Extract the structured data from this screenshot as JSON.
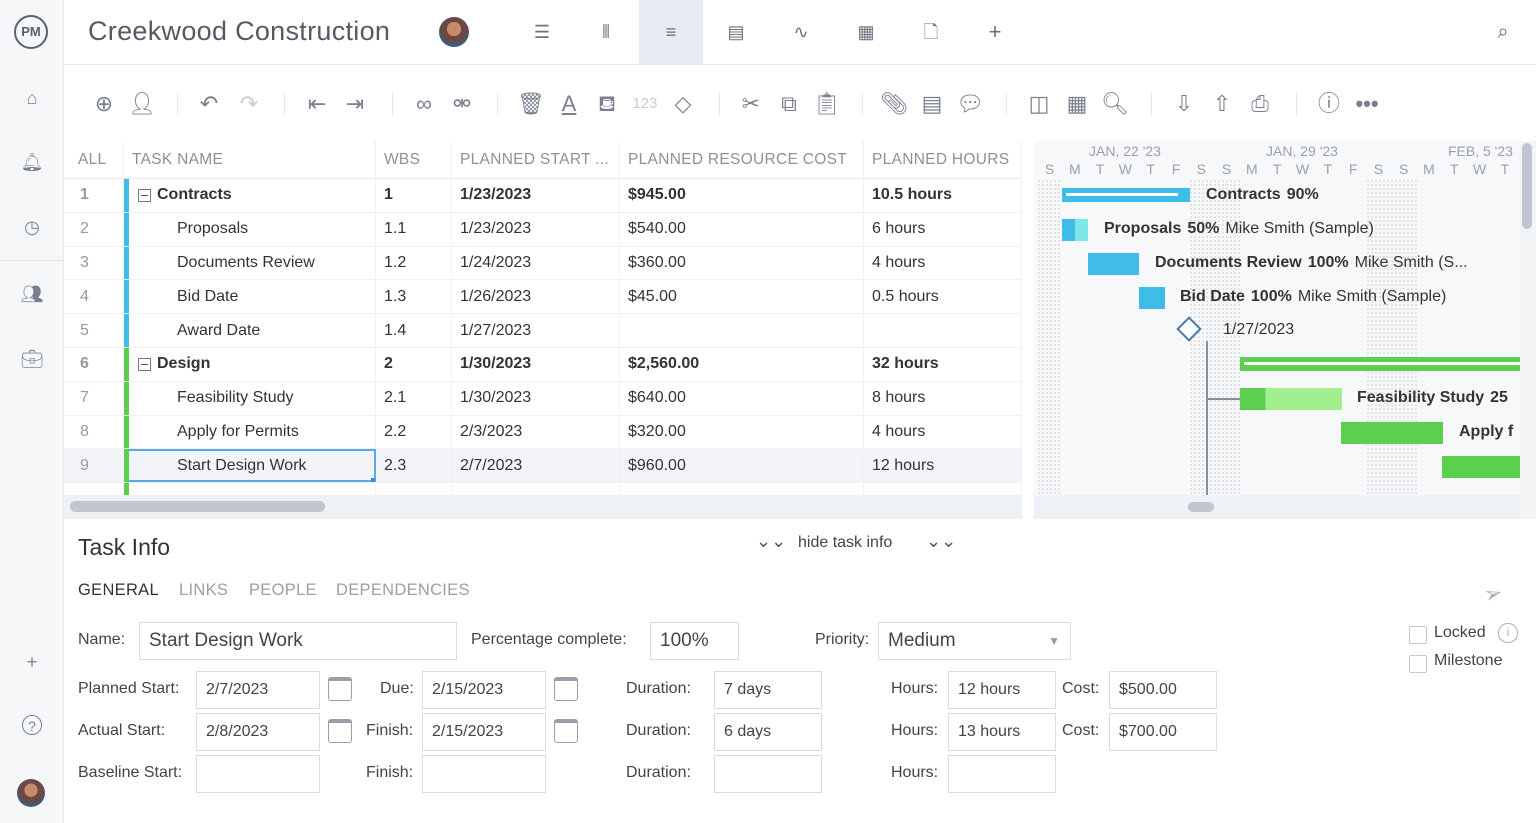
{
  "app": {
    "logo": "PM",
    "title": "Creekwood Construction"
  },
  "sidebar": {
    "items": [
      {
        "icon": "home-icon"
      },
      {
        "icon": "bell-icon"
      },
      {
        "icon": "clock-icon"
      },
      {
        "icon": "people-icon"
      },
      {
        "icon": "briefcase-icon"
      },
      {
        "icon": "plus-icon"
      },
      {
        "icon": "help-icon"
      }
    ]
  },
  "views": [
    {
      "icon": "list-view-icon"
    },
    {
      "icon": "board-view-icon"
    },
    {
      "icon": "gantt-view-icon",
      "active": true
    },
    {
      "icon": "sheet-view-icon"
    },
    {
      "icon": "dashboard-view-icon"
    },
    {
      "icon": "calendar-view-icon"
    },
    {
      "icon": "files-view-icon"
    },
    {
      "icon": "add-view-icon"
    }
  ],
  "toolbar": {
    "number_format": "123"
  },
  "table": {
    "headers": [
      "ALL",
      "TASK NAME",
      "WBS",
      "PLANNED START ...",
      "PLANNED RESOURCE COST",
      "PLANNED HOURS"
    ],
    "rows": [
      {
        "n": "1",
        "name": "Contracts",
        "wbs": "1",
        "start": "1/23/2023",
        "cost": "$945.00",
        "hours": "10.5 hours",
        "summary": true,
        "color": "#3fbde8"
      },
      {
        "n": "2",
        "name": "Proposals",
        "wbs": "1.1",
        "start": "1/23/2023",
        "cost": "$540.00",
        "hours": "6 hours",
        "color": "#3fbde8"
      },
      {
        "n": "3",
        "name": "Documents Review",
        "wbs": "1.2",
        "start": "1/24/2023",
        "cost": "$360.00",
        "hours": "4 hours",
        "color": "#3fbde8"
      },
      {
        "n": "4",
        "name": "Bid Date",
        "wbs": "1.3",
        "start": "1/26/2023",
        "cost": "$45.00",
        "hours": "0.5 hours",
        "color": "#3fbde8"
      },
      {
        "n": "5",
        "name": "Award Date",
        "wbs": "1.4",
        "start": "1/27/2023",
        "cost": "",
        "hours": "",
        "color": "#3fbde8"
      },
      {
        "n": "6",
        "name": "Design",
        "wbs": "2",
        "start": "1/30/2023",
        "cost": "$2,560.00",
        "hours": "32 hours",
        "summary": true,
        "color": "#5ccf4f"
      },
      {
        "n": "7",
        "name": "Feasibility Study",
        "wbs": "2.1",
        "start": "1/30/2023",
        "cost": "$640.00",
        "hours": "8 hours",
        "color": "#5ccf4f"
      },
      {
        "n": "8",
        "name": "Apply for Permits",
        "wbs": "2.2",
        "start": "2/3/2023",
        "cost": "$320.00",
        "hours": "4 hours",
        "color": "#5ccf4f"
      },
      {
        "n": "9",
        "name": "Start Design Work",
        "wbs": "2.3",
        "start": "2/7/2023",
        "cost": "$960.00",
        "hours": "12 hours",
        "color": "#5ccf4f",
        "selected": true
      }
    ]
  },
  "gantt": {
    "weeks": [
      "JAN, 22 '23",
      "JAN, 29 '23",
      "FEB, 5 '23"
    ],
    "days": [
      "S",
      "M",
      "T",
      "W",
      "T",
      "F",
      "S",
      "S",
      "M",
      "T",
      "W",
      "T",
      "F",
      "S",
      "S",
      "M",
      "T",
      "W",
      "T"
    ],
    "labels": [
      {
        "name": "Contracts",
        "pct": "90%",
        "who": ""
      },
      {
        "name": "Proposals",
        "pct": "50%",
        "who": "Mike Smith (Sample)"
      },
      {
        "name": "Documents Review",
        "pct": "100%",
        "who": "Mike Smith (S..."
      },
      {
        "name": "Bid Date",
        "pct": "100%",
        "who": "Mike Smith (Sample)"
      },
      {
        "name": "",
        "pct": "",
        "who": "1/27/2023"
      },
      {
        "name": "Feasibility Study",
        "pct": "25",
        "who": ""
      },
      {
        "name": "Apply f",
        "pct": "",
        "who": ""
      }
    ],
    "colors": {
      "blue": "#3fbde8",
      "light_blue": "#7fe6ea",
      "green": "#5ccf4f",
      "light_green": "#a3ef8f"
    }
  },
  "task_info": {
    "title": "Task Info",
    "hide_label": "hide task info",
    "tabs": [
      "GENERAL",
      "LINKS",
      "PEOPLE",
      "DEPENDENCIES"
    ],
    "name_label": "Name:",
    "name": "Start Design Work",
    "pct_label": "Percentage complete:",
    "pct": "100%",
    "priority_label": "Priority:",
    "priority": "Medium",
    "locked": "Locked",
    "milestone": "Milestone",
    "planned_start_label": "Planned Start:",
    "planned_start": "2/7/2023",
    "due_label": "Due:",
    "due": "2/15/2023",
    "duration_label": "Duration:",
    "planned_duration": "7 days",
    "hours_label": "Hours:",
    "planned_hours": "12 hours",
    "cost_label": "Cost:",
    "planned_cost": "$500.00",
    "actual_start_label": "Actual Start:",
    "actual_start": "2/8/2023",
    "finish_label": "Finish:",
    "actual_finish": "2/15/2023",
    "actual_duration": "6 days",
    "actual_hours": "13 hours",
    "actual_cost": "$700.00",
    "baseline_start_label": "Baseline Start:",
    "baseline_start": "",
    "baseline_finish": "",
    "baseline_duration": "",
    "baseline_hours": ""
  }
}
